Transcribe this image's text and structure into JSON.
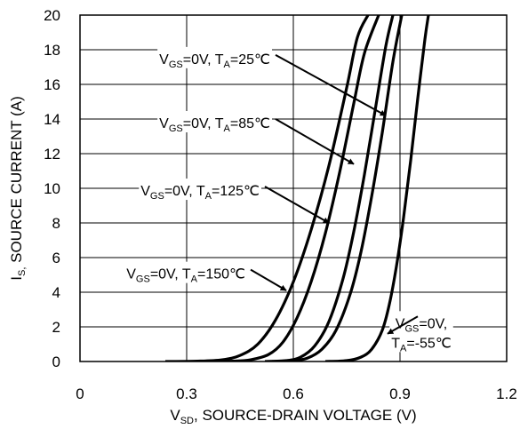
{
  "chart_data": {
    "type": "line",
    "xlabel_main": "V",
    "xlabel_sub": "SD",
    "xlabel_rest": ", SOURCE-DRAIN VOLTAGE (V)",
    "ylabel_main": "I",
    "ylabel_sub": "S,",
    "ylabel_rest": " SOURCE CURRENT (A)",
    "xlim": [
      0,
      1.2
    ],
    "ylim": [
      0,
      20
    ],
    "x_ticks": [
      "0",
      "0.3",
      "0.6",
      "0.9",
      "1.2"
    ],
    "y_ticks": [
      "0",
      "2",
      "4",
      "6",
      "8",
      "10",
      "12",
      "14",
      "16",
      "18",
      "20"
    ],
    "grid": true,
    "series": [
      {
        "x": [
          0.24,
          0.33,
          0.4,
          0.45,
          0.5,
          0.55,
          0.6,
          0.65,
          0.7,
          0.75,
          0.78,
          0.81
        ],
        "y": [
          0,
          0.02,
          0.1,
          0.35,
          1.0,
          2.4,
          4.6,
          7.6,
          11.3,
          15.8,
          18.7,
          20
        ]
      },
      {
        "x": [
          0.36,
          0.43,
          0.48,
          0.53,
          0.57,
          0.61,
          0.65,
          0.69,
          0.73,
          0.77,
          0.8,
          0.84
        ],
        "y": [
          0,
          0.02,
          0.1,
          0.4,
          1.1,
          2.5,
          4.6,
          7.4,
          10.9,
          14.9,
          17.8,
          20
        ]
      },
      {
        "x": [
          0.52,
          0.58,
          0.62,
          0.66,
          0.7,
          0.74,
          0.77,
          0.8,
          0.83,
          0.86,
          0.88
        ],
        "y": [
          0,
          0.05,
          0.25,
          0.9,
          2.3,
          4.8,
          7.5,
          10.8,
          14.5,
          18.2,
          20
        ]
      },
      {
        "x": [
          0.54,
          0.6,
          0.64,
          0.68,
          0.72,
          0.76,
          0.79,
          0.82,
          0.85,
          0.88,
          0.905
        ],
        "y": [
          0,
          0.05,
          0.2,
          0.7,
          1.8,
          3.9,
          6.3,
          9.5,
          13.2,
          17.3,
          20
        ]
      },
      {
        "x": [
          0.69,
          0.75,
          0.79,
          0.82,
          0.85,
          0.87,
          0.89,
          0.91,
          0.93,
          0.95,
          0.97,
          0.98
        ],
        "y": [
          0,
          0.05,
          0.25,
          0.7,
          1.8,
          3.3,
          5.5,
          8.3,
          11.6,
          15.2,
          18.6,
          20
        ]
      }
    ],
    "annotations": [
      {
        "lines": [
          [
            [
              "V",
              ""
            ],
            [
              "GS",
              "sub"
            ],
            [
              "=0V, T",
              ""
            ],
            [
              "A",
              "sub"
            ],
            [
              "=25℃",
              ""
            ]
          ]
        ],
        "arrow_tail": [
          0.55,
          17.7
        ],
        "arrow_head": [
          0.86,
          14.2
        ]
      },
      {
        "lines": [
          [
            [
              "V",
              ""
            ],
            [
              "GS",
              "sub"
            ],
            [
              "=0V, T",
              ""
            ],
            [
              "A",
              "sub"
            ],
            [
              "=85℃",
              ""
            ]
          ]
        ],
        "arrow_tail": [
          0.55,
          14.0
        ],
        "arrow_head": [
          0.77,
          11.4
        ]
      },
      {
        "lines": [
          [
            [
              "V",
              ""
            ],
            [
              "GS",
              "sub"
            ],
            [
              "=0V, T",
              ""
            ],
            [
              "A",
              "sub"
            ],
            [
              "=125℃",
              ""
            ]
          ]
        ],
        "arrow_tail": [
          0.52,
          10.1
        ],
        "arrow_head": [
          0.7,
          8.0
        ]
      },
      {
        "lines": [
          [
            [
              "V",
              ""
            ],
            [
              "GS",
              "sub"
            ],
            [
              "=0V, T",
              ""
            ],
            [
              "A",
              "sub"
            ],
            [
              "=150℃",
              ""
            ]
          ]
        ],
        "arrow_tail": [
          0.48,
          5.3
        ],
        "arrow_head": [
          0.58,
          4.1
        ]
      },
      {
        "lines": [
          [
            [
              "V",
              ""
            ],
            [
              "GS",
              "sub"
            ],
            [
              "=0V,",
              ""
            ]
          ],
          [
            [
              "T",
              ""
            ],
            [
              "A",
              "sub"
            ],
            [
              "=-55℃",
              ""
            ]
          ]
        ],
        "arrow_tail": [
          0.95,
          2.6
        ],
        "arrow_head": [
          0.865,
          1.6
        ]
      }
    ]
  }
}
